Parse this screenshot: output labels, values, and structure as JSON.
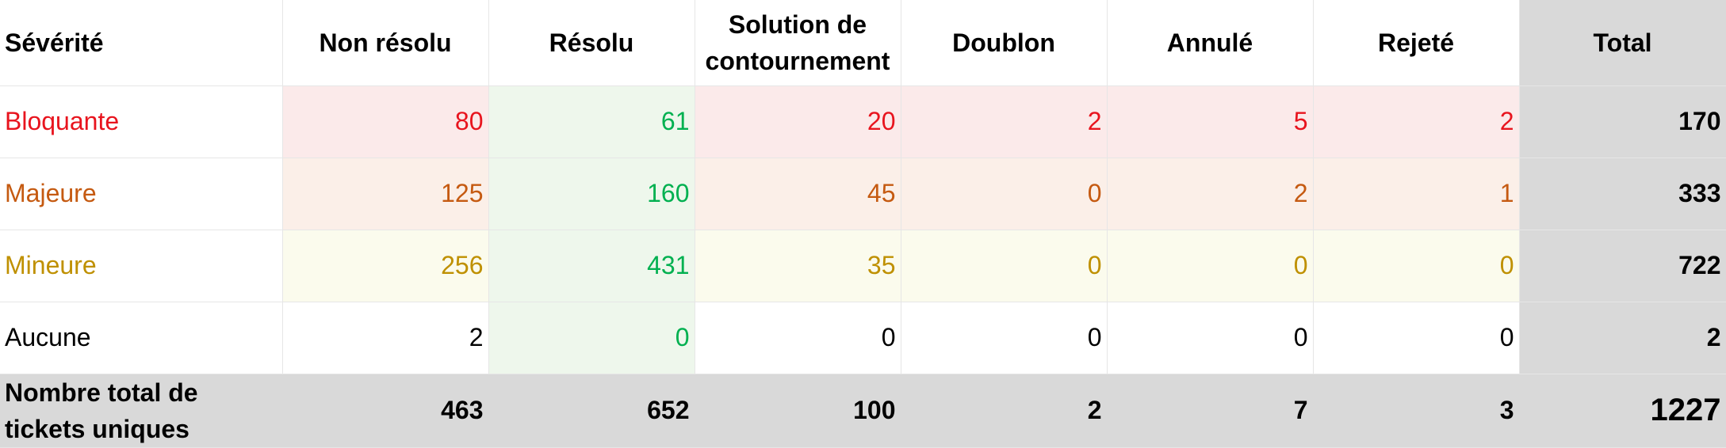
{
  "colors": {
    "bloquante": "#e8141e",
    "majeure": "#c55a11",
    "mineure": "#bf9000",
    "aucune": "#000000",
    "resolu_text": "#00b050",
    "resolu_bg": "#eef7ec",
    "bloquante_bg": "#fbeaea",
    "majeure_bg": "#fbefe8",
    "mineure_bg": "#fbfbed",
    "total_bg": "#d9d9d9"
  },
  "headers": {
    "severity": "Sévérité",
    "non_resolu": "Non résolu",
    "resolu": "Résolu",
    "contournement": "Solution de contournement",
    "doublon": "Doublon",
    "annule": "Annulé",
    "rejete": "Rejeté",
    "total": "Total"
  },
  "rows": [
    {
      "label": "Bloquante",
      "values": [
        "80",
        "61",
        "20",
        "2",
        "5",
        "2"
      ],
      "total": "170"
    },
    {
      "label": "Majeure",
      "values": [
        "125",
        "160",
        "45",
        "0",
        "2",
        "1"
      ],
      "total": "333"
    },
    {
      "label": "Mineure",
      "values": [
        "256",
        "431",
        "35",
        "0",
        "0",
        "0"
      ],
      "total": "722"
    },
    {
      "label": "Aucune",
      "values": [
        "2",
        "0",
        "0",
        "0",
        "0",
        "0"
      ],
      "total": "2"
    }
  ],
  "totals": {
    "label": "Nombre total de tickets uniques",
    "values": [
      "463",
      "652",
      "100",
      "2",
      "7",
      "3"
    ],
    "grand_total": "1227"
  }
}
